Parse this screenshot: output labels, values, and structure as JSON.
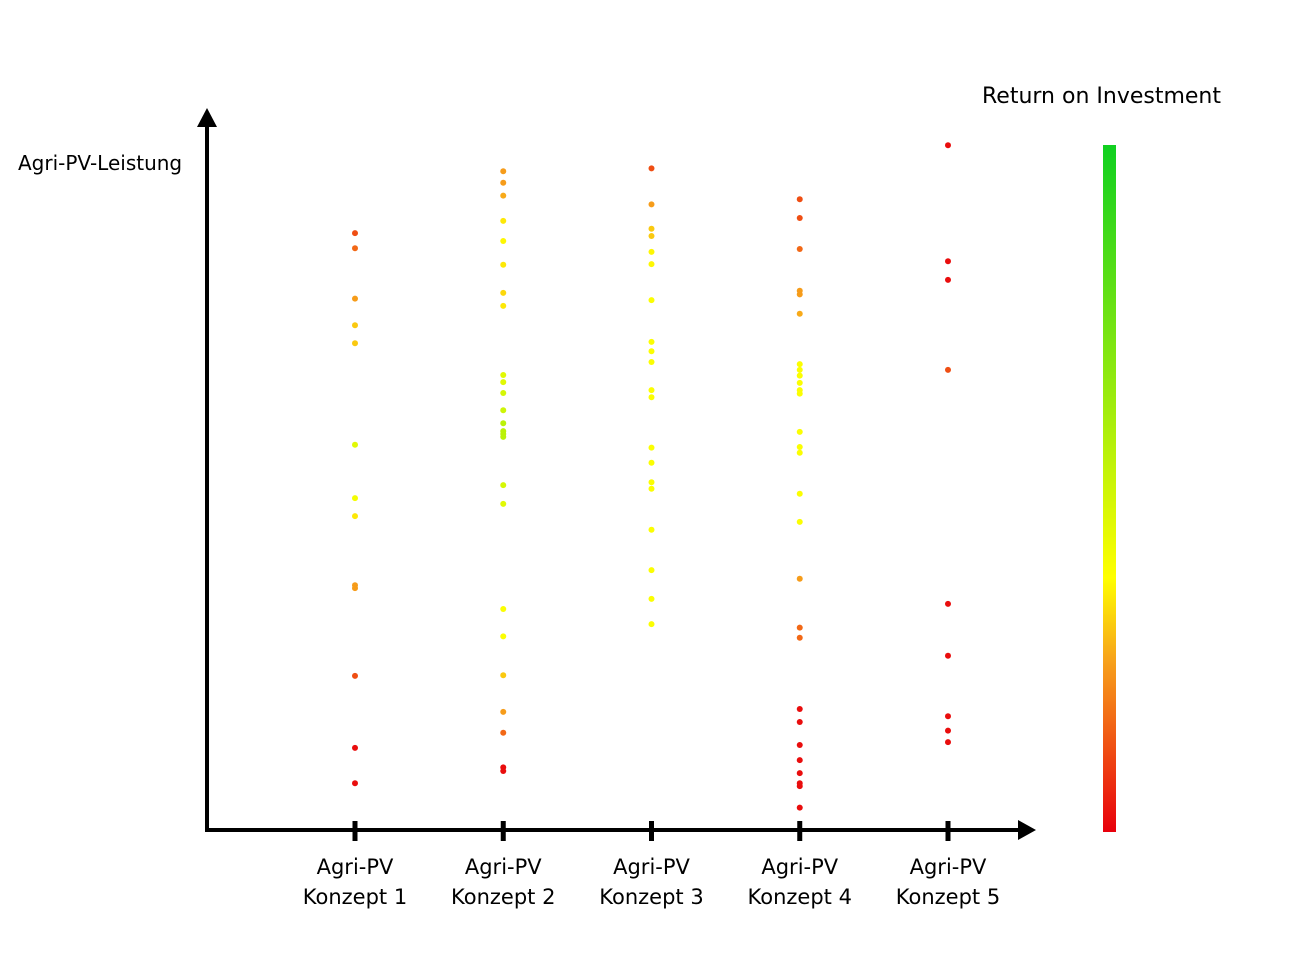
{
  "chart_data": {
    "type": "strip",
    "y_label": "Agri-PV-Leistung",
    "categories": [
      "Agri-PV Konzept 1",
      "Agri-PV Konzept 2",
      "Agri-PV Konzept 3",
      "Agri-PV Konzept 4",
      "Agri-PV Konzept 5"
    ],
    "ylim": [
      0,
      100
    ],
    "values": [
      [
        82.9,
        80.8,
        73.8,
        70.1,
        67.6,
        53.5,
        46.1,
        43.6,
        34.0,
        33.6,
        21.4,
        11.4,
        6.5
      ],
      [
        91.5,
        89.9,
        88.1,
        84.6,
        81.8,
        78.5,
        74.6,
        72.8,
        63.2,
        62.2,
        60.7,
        58.3,
        56.5,
        55.4,
        55.0,
        54.6,
        47.9,
        45.3,
        30.7,
        26.9,
        21.5,
        16.4,
        13.5,
        8.7,
        8.2
      ],
      [
        91.9,
        86.9,
        83.5,
        82.5,
        80.3,
        78.6,
        73.6,
        67.8,
        66.5,
        65.0,
        61.1,
        60.1,
        53.1,
        51.0,
        48.3,
        47.4,
        41.7,
        36.1,
        32.1,
        28.6
      ],
      [
        87.6,
        85.0,
        80.7,
        74.9,
        74.4,
        71.7,
        64.7,
        63.9,
        63.1,
        62.1,
        61.1,
        60.6,
        55.3,
        53.2,
        52.4,
        46.7,
        42.8,
        34.9,
        28.1,
        26.7,
        16.8,
        15.0,
        11.8,
        9.7,
        7.9,
        6.5,
        6.1,
        3.1
      ],
      [
        95.1,
        79.0,
        76.4,
        63.9,
        31.4,
        24.2,
        15.8,
        13.8,
        12.2
      ]
    ],
    "roi": [
      [
        12,
        16,
        24,
        30,
        30,
        45,
        40,
        34,
        24,
        24,
        12,
        2,
        2
      ],
      [
        24,
        24,
        26,
        34,
        36,
        34,
        32,
        34,
        45,
        45,
        48,
        50,
        55,
        55,
        55,
        55,
        48,
        45,
        38,
        38,
        30,
        24,
        16,
        2,
        2
      ],
      [
        12,
        24,
        30,
        30,
        36,
        36,
        38,
        38,
        38,
        38,
        38,
        38,
        38,
        38,
        38,
        38,
        38,
        38,
        38,
        38
      ],
      [
        12,
        12,
        16,
        24,
        24,
        26,
        38,
        38,
        38,
        38,
        38,
        38,
        38,
        38,
        38,
        38,
        38,
        24,
        16,
        16,
        2,
        2,
        2,
        2,
        2,
        2,
        2,
        2
      ],
      [
        2,
        2,
        2,
        12,
        2,
        2,
        2,
        2,
        2
      ]
    ],
    "colorbar": {
      "title": "Return on Investment",
      "clim": [
        0,
        100
      ],
      "colorscale": [
        [
          0,
          "#e8000c"
        ],
        [
          0.25,
          "#f7a21b"
        ],
        [
          0.37,
          "#ffff00"
        ],
        [
          1,
          "#10d020"
        ]
      ]
    }
  }
}
